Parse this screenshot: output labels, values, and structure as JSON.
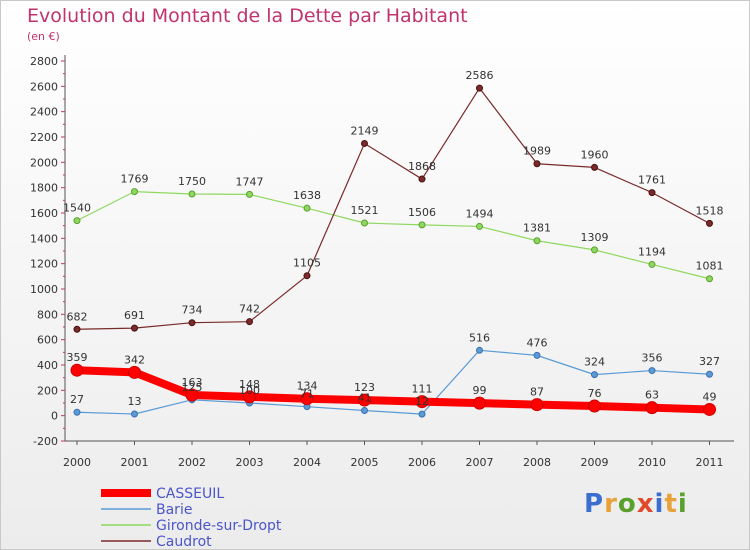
{
  "header": {
    "title": "Evolution du Montant de la Dette par Habitant",
    "unit": "(en €)"
  },
  "logo": {
    "text": "Proxiti",
    "colors": [
      "#3a6fd0",
      "#e8a23a",
      "#5aa02c",
      "#e04a2a",
      "#3a6fd0",
      "#e8a23a",
      "#5aa02c"
    ]
  },
  "chart_data": {
    "type": "line",
    "title": "Evolution du Montant de la Dette par Habitant",
    "subtitle": "(en €)",
    "xlabel": "",
    "ylabel": "",
    "x": [
      "2000",
      "2001",
      "2002",
      "2003",
      "2004",
      "2005",
      "2006",
      "2007",
      "2008",
      "2009",
      "2010",
      "2011"
    ],
    "ylim": [
      -200,
      2800
    ],
    "yticks": [
      -200,
      0,
      200,
      400,
      600,
      800,
      1000,
      1200,
      1400,
      1600,
      1800,
      2000,
      2200,
      2400,
      2600,
      2800
    ],
    "grid": false,
    "legend_position": "bottom-left",
    "series": [
      {
        "name": "CASSEUIL",
        "color": "#ff0000",
        "marker_stroke": "#cc0000",
        "thick": true,
        "values": [
          359,
          342,
          163,
          148,
          134,
          123,
          111,
          99,
          87,
          76,
          63,
          49
        ]
      },
      {
        "name": "Barie",
        "color": "#5b9bd5",
        "marker_stroke": "#3a6fb0",
        "thick": false,
        "values": [
          27,
          13,
          125,
          100,
          71,
          41,
          12,
          516,
          476,
          324,
          356,
          327
        ]
      },
      {
        "name": "Gironde-sur-Dropt",
        "color": "#8fd860",
        "marker_stroke": "#5aa02c",
        "thick": false,
        "values": [
          1540,
          1769,
          1750,
          1747,
          1638,
          1521,
          1506,
          1494,
          1381,
          1309,
          1194,
          1081
        ]
      },
      {
        "name": "Caudrot",
        "color": "#7a2a2a",
        "marker_stroke": "#4a1010",
        "thick": false,
        "values": [
          682,
          691,
          734,
          742,
          1105,
          2149,
          1868,
          2586,
          1989,
          1960,
          1761,
          1518
        ]
      }
    ]
  }
}
